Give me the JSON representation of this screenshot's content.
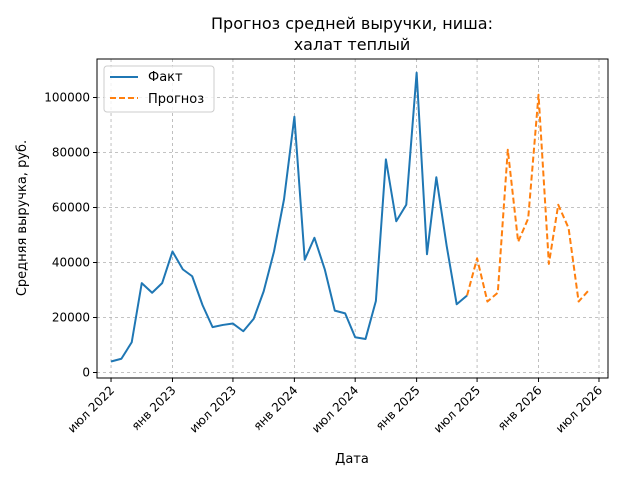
{
  "chart_data": {
    "type": "line",
    "title": [
      "Прогноз средней выручки, ниша:",
      "халат теплый"
    ],
    "xlabel": "Дата",
    "ylabel": "Средняя выручка, руб.",
    "ylim": [
      -2000,
      114000
    ],
    "yticks": [
      0,
      20000,
      40000,
      60000,
      80000,
      100000
    ],
    "xlim": [
      "2022-05-20",
      "2026-07-28"
    ],
    "xticks": [
      {
        "date": "2022-07-01",
        "label": "июл 2022"
      },
      {
        "date": "2023-01-01",
        "label": "янв 2023"
      },
      {
        "date": "2023-07-01",
        "label": "июл 2023"
      },
      {
        "date": "2024-01-01",
        "label": "янв 2024"
      },
      {
        "date": "2024-07-01",
        "label": "июл 2024"
      },
      {
        "date": "2025-01-01",
        "label": "янв 2025"
      },
      {
        "date": "2025-07-01",
        "label": "июл 2025"
      },
      {
        "date": "2026-01-01",
        "label": "янв 2026"
      },
      {
        "date": "2026-07-01",
        "label": "июл 2026"
      }
    ],
    "grid": true,
    "legend_position": "top-left",
    "series": [
      {
        "name": "Факт",
        "color": "#1f77b4",
        "style": "solid",
        "points": [
          [
            "2022-07-01",
            4000
          ],
          [
            "2022-08-01",
            5000
          ],
          [
            "2022-09-01",
            11000
          ],
          [
            "2022-10-01",
            32500
          ],
          [
            "2022-11-01",
            29000
          ],
          [
            "2022-12-01",
            32500
          ],
          [
            "2023-01-01",
            44000
          ],
          [
            "2023-02-01",
            37500
          ],
          [
            "2023-03-01",
            35000
          ],
          [
            "2023-04-01",
            24500
          ],
          [
            "2023-05-01",
            16500
          ],
          [
            "2023-06-01",
            17300
          ],
          [
            "2023-07-01",
            17800
          ],
          [
            "2023-08-01",
            15000
          ],
          [
            "2023-09-01",
            19500
          ],
          [
            "2023-10-01",
            29500
          ],
          [
            "2023-11-01",
            44000
          ],
          [
            "2023-12-01",
            63000
          ],
          [
            "2024-01-01",
            93000
          ],
          [
            "2024-02-01",
            41000
          ],
          [
            "2024-03-01",
            49000
          ],
          [
            "2024-04-01",
            37500
          ],
          [
            "2024-05-01",
            22500
          ],
          [
            "2024-06-01",
            21500
          ],
          [
            "2024-07-01",
            12800
          ],
          [
            "2024-08-01",
            12200
          ],
          [
            "2024-09-01",
            26000
          ],
          [
            "2024-10-01",
            77500
          ],
          [
            "2024-11-01",
            55000
          ],
          [
            "2024-12-01",
            61000
          ],
          [
            "2025-01-01",
            109000
          ],
          [
            "2025-02-01",
            43000
          ],
          [
            "2025-03-01",
            71000
          ],
          [
            "2025-04-01",
            46000
          ],
          [
            "2025-05-01",
            24800
          ],
          [
            "2025-06-01",
            28000
          ]
        ]
      },
      {
        "name": "Прогноз",
        "color": "#ff7f0e",
        "style": "dashed",
        "points": [
          [
            "2025-06-01",
            28000
          ],
          [
            "2025-07-01",
            41500
          ],
          [
            "2025-08-01",
            25800
          ],
          [
            "2025-09-01",
            29000
          ],
          [
            "2025-10-01",
            81000
          ],
          [
            "2025-11-01",
            47500
          ],
          [
            "2025-12-01",
            56000
          ],
          [
            "2026-01-01",
            101000
          ],
          [
            "2026-02-01",
            39500
          ],
          [
            "2026-03-01",
            61000
          ],
          [
            "2026-04-01",
            52500
          ],
          [
            "2026-05-01",
            25800
          ],
          [
            "2026-06-01",
            30000
          ]
        ]
      }
    ]
  }
}
